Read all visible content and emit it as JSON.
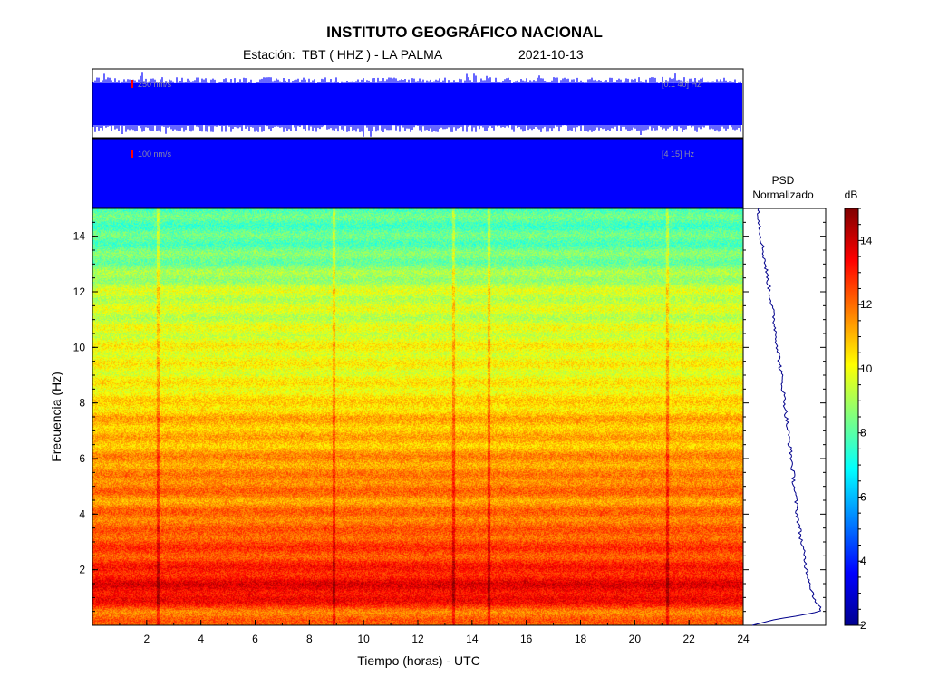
{
  "header": {
    "title": "INSTITUTO GEOGRÁFICO NACIONAL",
    "station_line": "Estación:  TBT ( HHZ ) - LA PALMA",
    "date": "2021-10-13"
  },
  "traces": [
    {
      "amplitude_label": "250 nm/s",
      "band_label": "[0.1 40] Hz",
      "color": "#0000ff",
      "marker_color": "#ff0000"
    },
    {
      "amplitude_label": "100 nm/s",
      "band_label": "[4 15] Hz",
      "color": "#0000ff",
      "marker_color": "#ff0000"
    }
  ],
  "psd_panel": {
    "title_line1": "PSD",
    "title_line2": "Normalizado",
    "line_color": "#00008b"
  },
  "colorbar": {
    "label": "dB",
    "range": [
      2,
      15
    ],
    "ticks": [
      2,
      4,
      6,
      8,
      10,
      12,
      14
    ],
    "colormap": "jet"
  },
  "chart_data": [
    {
      "type": "heatmap",
      "title": "",
      "xlabel": "Tiempo (horas) - UTC",
      "ylabel": "Frecuencia  (Hz)",
      "xlim": [
        0,
        24
      ],
      "ylim": [
        0,
        15
      ],
      "xticks": [
        2,
        4,
        6,
        8,
        10,
        12,
        14,
        16,
        18,
        20,
        22,
        24
      ],
      "yticks": [
        2,
        4,
        6,
        8,
        10,
        12,
        14
      ],
      "value_unit": "dB",
      "frequency_bands_hz": [
        0.5,
        1.0,
        1.5,
        2.0,
        2.5,
        3.0,
        3.5,
        4.0,
        4.5,
        5.0,
        5.5,
        6.0,
        6.5,
        7.0,
        7.5,
        8.0,
        9.0,
        10.0,
        11.0,
        12.0,
        13.0,
        14.0,
        15.0
      ],
      "typical_db": [
        12.0,
        13.5,
        13.5,
        13.0,
        12.5,
        12.5,
        12.0,
        12.0,
        11.5,
        12.0,
        11.5,
        11.5,
        11.0,
        11.0,
        11.0,
        10.5,
        10.0,
        10.0,
        9.5,
        9.5,
        8.5,
        8.0,
        8.0
      ],
      "transient_times_h": [
        2.4,
        8.9,
        13.3,
        14.6,
        21.2
      ]
    },
    {
      "type": "line",
      "title": "PSD Normalizado",
      "xlabel": "",
      "ylabel": "Frecuencia  (Hz)",
      "ylim": [
        0,
        15
      ],
      "xlim": [
        0,
        1
      ],
      "series": [
        {
          "frequency_hz": [
            0.0,
            0.2,
            0.5,
            0.8,
            1.0,
            1.5,
            2.0,
            3.0,
            4.0,
            5.0,
            6.0,
            7.0,
            8.0,
            9.0,
            10.0,
            11.0,
            12.0,
            13.0,
            14.0,
            14.5,
            15.0
          ],
          "psd_norm": [
            0.0,
            0.3,
            0.95,
            0.9,
            0.85,
            0.8,
            0.75,
            0.68,
            0.62,
            0.58,
            0.54,
            0.49,
            0.45,
            0.4,
            0.35,
            0.3,
            0.24,
            0.18,
            0.12,
            0.1,
            0.09
          ]
        }
      ]
    }
  ]
}
